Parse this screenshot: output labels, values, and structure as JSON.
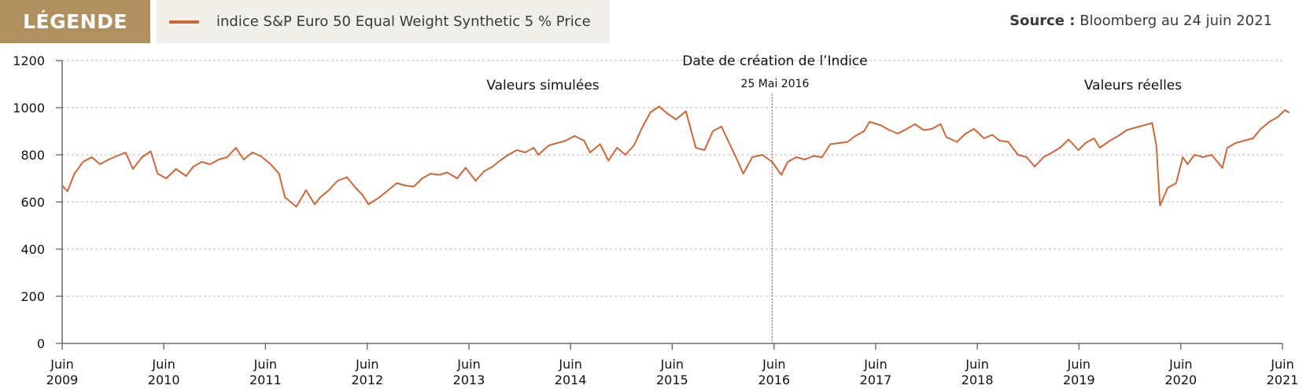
{
  "legend": {
    "tag_label": "LÉGENDE",
    "series_label": "indice S&P Euro 50 Equal Weight Synthetic 5 % Price",
    "series_color": "#c8693c"
  },
  "source": {
    "label": "Source :",
    "text": "Bloomberg au 24 juin 2021"
  },
  "annotations": {
    "creation_title": "Date de création de l’Indice",
    "creation_date": "25 Mai 2016",
    "simulated": "Valeurs simulées",
    "real": "Valeurs réelles"
  },
  "chart_data": {
    "type": "line",
    "title": "",
    "xlabel": "",
    "ylabel": "",
    "ylim": [
      0,
      1200
    ],
    "yticks": [
      0,
      200,
      400,
      600,
      800,
      1000,
      1200
    ],
    "xlim": [
      "2009-06",
      "2021-06"
    ],
    "xticks": [
      {
        "month": "Juin",
        "year": "2009"
      },
      {
        "month": "Juin",
        "year": "2010"
      },
      {
        "month": "Juin",
        "year": "2011"
      },
      {
        "month": "Juin",
        "year": "2012"
      },
      {
        "month": "Juin",
        "year": "2013"
      },
      {
        "month": "Juin",
        "year": "2014"
      },
      {
        "month": "Juin",
        "year": "2015"
      },
      {
        "month": "Juin",
        "year": "2016"
      },
      {
        "month": "Juin",
        "year": "2017"
      },
      {
        "month": "Juin",
        "year": "2018"
      },
      {
        "month": "Juin",
        "year": "2019"
      },
      {
        "month": "Juin",
        "year": "2020"
      },
      {
        "month": "Juin",
        "year": "2021"
      }
    ],
    "grid": "horizontal dashed",
    "vline": {
      "x": "2016-05-25"
    },
    "series": [
      {
        "name": "indice S&P Euro 50 Equal Weight Synthetic 5 % Price",
        "color": "#c8693c",
        "points": [
          [
            "2009-06-01",
            670
          ],
          [
            "2009-06-20",
            645
          ],
          [
            "2009-07-15",
            720
          ],
          [
            "2009-08-15",
            770
          ],
          [
            "2009-09-15",
            790
          ],
          [
            "2009-10-15",
            760
          ],
          [
            "2009-11-15",
            780
          ],
          [
            "2009-12-15",
            795
          ],
          [
            "2010-01-15",
            810
          ],
          [
            "2010-02-10",
            740
          ],
          [
            "2010-03-15",
            790
          ],
          [
            "2010-04-15",
            815
          ],
          [
            "2010-05-10",
            720
          ],
          [
            "2010-06-10",
            700
          ],
          [
            "2010-07-15",
            740
          ],
          [
            "2010-08-20",
            710
          ],
          [
            "2010-09-15",
            750
          ],
          [
            "2010-10-15",
            770
          ],
          [
            "2010-11-15",
            760
          ],
          [
            "2010-12-15",
            780
          ],
          [
            "2011-01-15",
            790
          ],
          [
            "2011-02-15",
            830
          ],
          [
            "2011-03-15",
            780
          ],
          [
            "2011-04-15",
            810
          ],
          [
            "2011-05-15",
            795
          ],
          [
            "2011-06-20",
            760
          ],
          [
            "2011-07-20",
            720
          ],
          [
            "2011-08-10",
            620
          ],
          [
            "2011-09-20",
            580
          ],
          [
            "2011-10-25",
            650
          ],
          [
            "2011-11-25",
            590
          ],
          [
            "2011-12-15",
            620
          ],
          [
            "2012-01-15",
            650
          ],
          [
            "2012-02-15",
            690
          ],
          [
            "2012-03-20",
            705
          ],
          [
            "2012-04-20",
            660
          ],
          [
            "2012-05-15",
            630
          ],
          [
            "2012-06-05",
            590
          ],
          [
            "2012-07-15",
            620
          ],
          [
            "2012-08-15",
            650
          ],
          [
            "2012-09-15",
            680
          ],
          [
            "2012-10-15",
            670
          ],
          [
            "2012-11-15",
            665
          ],
          [
            "2012-12-15",
            700
          ],
          [
            "2013-01-15",
            720
          ],
          [
            "2013-02-15",
            715
          ],
          [
            "2013-03-15",
            725
          ],
          [
            "2013-04-20",
            700
          ],
          [
            "2013-05-20",
            745
          ],
          [
            "2013-06-25",
            690
          ],
          [
            "2013-07-25",
            730
          ],
          [
            "2013-08-25",
            750
          ],
          [
            "2013-09-20",
            775
          ],
          [
            "2013-10-20",
            800
          ],
          [
            "2013-11-20",
            820
          ],
          [
            "2013-12-20",
            810
          ],
          [
            "2014-01-20",
            830
          ],
          [
            "2014-02-05",
            800
          ],
          [
            "2014-03-15",
            840
          ],
          [
            "2014-04-15",
            850
          ],
          [
            "2014-05-15",
            860
          ],
          [
            "2014-06-15",
            880
          ],
          [
            "2014-07-20",
            860
          ],
          [
            "2014-08-10",
            810
          ],
          [
            "2014-09-15",
            845
          ],
          [
            "2014-10-15",
            775
          ],
          [
            "2014-11-15",
            830
          ],
          [
            "2014-12-15",
            800
          ],
          [
            "2015-01-15",
            840
          ],
          [
            "2015-02-15",
            920
          ],
          [
            "2015-03-15",
            980
          ],
          [
            "2015-04-15",
            1005
          ],
          [
            "2015-05-15",
            975
          ],
          [
            "2015-06-15",
            950
          ],
          [
            "2015-07-20",
            985
          ],
          [
            "2015-08-25",
            830
          ],
          [
            "2015-09-25",
            820
          ],
          [
            "2015-10-25",
            900
          ],
          [
            "2015-11-25",
            920
          ],
          [
            "2015-12-15",
            870
          ],
          [
            "2016-01-20",
            780
          ],
          [
            "2016-02-11",
            720
          ],
          [
            "2016-03-15",
            790
          ],
          [
            "2016-04-20",
            800
          ],
          [
            "2016-05-25",
            770
          ],
          [
            "2016-06-27",
            715
          ],
          [
            "2016-07-20",
            770
          ],
          [
            "2016-08-20",
            790
          ],
          [
            "2016-09-20",
            780
          ],
          [
            "2016-10-20",
            795
          ],
          [
            "2016-11-20",
            790
          ],
          [
            "2016-12-20",
            845
          ],
          [
            "2017-01-20",
            850
          ],
          [
            "2017-02-20",
            855
          ],
          [
            "2017-03-20",
            880
          ],
          [
            "2017-04-20",
            900
          ],
          [
            "2017-05-10",
            940
          ],
          [
            "2017-06-20",
            925
          ],
          [
            "2017-07-20",
            905
          ],
          [
            "2017-08-20",
            890
          ],
          [
            "2017-09-20",
            910
          ],
          [
            "2017-10-20",
            930
          ],
          [
            "2017-11-20",
            905
          ],
          [
            "2017-12-20",
            910
          ],
          [
            "2018-01-20",
            930
          ],
          [
            "2018-02-10",
            875
          ],
          [
            "2018-03-20",
            855
          ],
          [
            "2018-04-20",
            890
          ],
          [
            "2018-05-20",
            910
          ],
          [
            "2018-06-25",
            870
          ],
          [
            "2018-07-25",
            885
          ],
          [
            "2018-08-20",
            860
          ],
          [
            "2018-09-20",
            855
          ],
          [
            "2018-10-25",
            800
          ],
          [
            "2018-11-25",
            790
          ],
          [
            "2018-12-24",
            750
          ],
          [
            "2019-01-25",
            790
          ],
          [
            "2019-02-25",
            810
          ],
          [
            "2019-03-25",
            830
          ],
          [
            "2019-04-25",
            865
          ],
          [
            "2019-05-30",
            820
          ],
          [
            "2019-06-25",
            850
          ],
          [
            "2019-07-25",
            870
          ],
          [
            "2019-08-15",
            830
          ],
          [
            "2019-09-20",
            860
          ],
          [
            "2019-10-20",
            880
          ],
          [
            "2019-11-20",
            905
          ],
          [
            "2019-12-20",
            915
          ],
          [
            "2020-01-20",
            925
          ],
          [
            "2020-02-19",
            935
          ],
          [
            "2020-03-05",
            840
          ],
          [
            "2020-03-18",
            585
          ],
          [
            "2020-04-15",
            660
          ],
          [
            "2020-05-15",
            680
          ],
          [
            "2020-06-08",
            790
          ],
          [
            "2020-06-25",
            760
          ],
          [
            "2020-07-20",
            800
          ],
          [
            "2020-08-20",
            790
          ],
          [
            "2020-09-20",
            800
          ],
          [
            "2020-10-28",
            745
          ],
          [
            "2020-11-15",
            830
          ],
          [
            "2020-12-15",
            850
          ],
          [
            "2021-01-15",
            860
          ],
          [
            "2021-02-15",
            870
          ],
          [
            "2021-03-15",
            910
          ],
          [
            "2021-04-15",
            940
          ],
          [
            "2021-05-15",
            960
          ],
          [
            "2021-06-10",
            990
          ],
          [
            "2021-06-24",
            980
          ]
        ]
      }
    ]
  }
}
